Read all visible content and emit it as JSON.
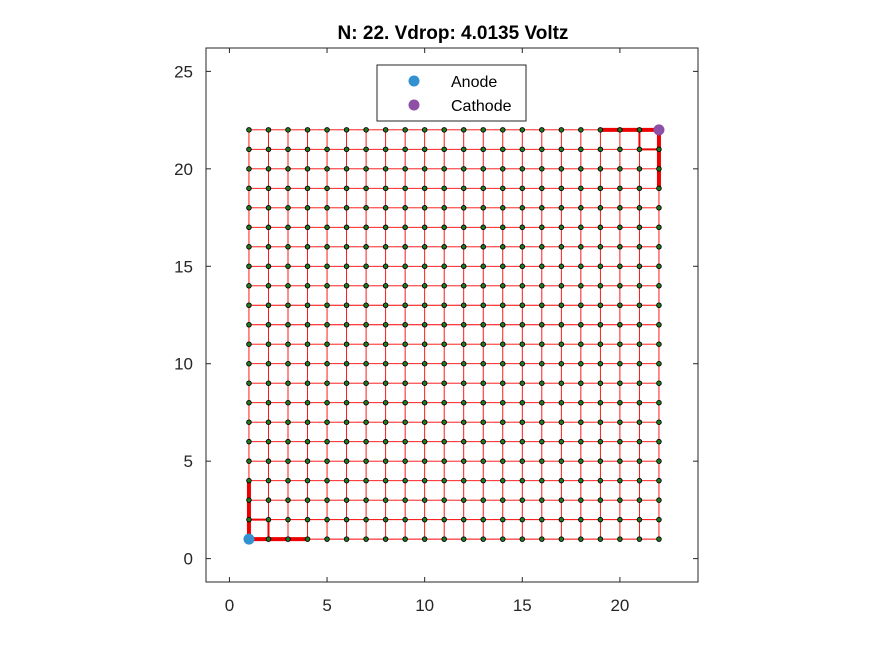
{
  "chart_data": {
    "type": "scatter",
    "title": "N: 22. Vdrop: 4.0135 Voltz",
    "xlabel": "",
    "ylabel": "",
    "xlim": [
      -1.2,
      24
    ],
    "ylim": [
      -1.2,
      26.2
    ],
    "xticks": [
      0,
      5,
      10,
      15,
      20
    ],
    "yticks": [
      0,
      5,
      10,
      15,
      20,
      25
    ],
    "grid": false,
    "legend_position": "top-center",
    "grid_size": 22,
    "legend": [
      {
        "name": "Anode",
        "color": "#3391d1"
      },
      {
        "name": "Cathode",
        "color": "#8e4fa6"
      }
    ],
    "series": [
      {
        "name": "Anode",
        "x": [
          1
        ],
        "y": [
          1
        ],
        "color": "#3391d1"
      },
      {
        "name": "Cathode",
        "x": [
          22
        ],
        "y": [
          22
        ],
        "color": "#8e4fa6"
      }
    ],
    "node_color": "#1f7a1f",
    "wire_color": "#ff0000",
    "heavy_wire_color": "#ee0000",
    "heavy_segments": [
      {
        "x": [
          1,
          4
        ],
        "y": [
          1,
          1
        ],
        "weight": 4
      },
      {
        "x": [
          1,
          1
        ],
        "y": [
          1,
          4
        ],
        "weight": 4
      },
      {
        "x": [
          1,
          2
        ],
        "y": [
          2,
          2
        ],
        "weight": 2
      },
      {
        "x": [
          2,
          2
        ],
        "y": [
          1,
          2
        ],
        "weight": 2
      },
      {
        "x": [
          2,
          3
        ],
        "y": [
          1,
          1
        ],
        "weight": 3
      },
      {
        "x": [
          1,
          1
        ],
        "y": [
          2,
          3
        ],
        "weight": 3
      },
      {
        "x": [
          19,
          22
        ],
        "y": [
          22,
          22
        ],
        "weight": 4
      },
      {
        "x": [
          22,
          22
        ],
        "y": [
          19,
          22
        ],
        "weight": 4
      },
      {
        "x": [
          21,
          22
        ],
        "y": [
          21,
          21
        ],
        "weight": 2
      },
      {
        "x": [
          21,
          21
        ],
        "y": [
          21,
          22
        ],
        "weight": 2
      },
      {
        "x": [
          20,
          21
        ],
        "y": [
          22,
          22
        ],
        "weight": 3
      },
      {
        "x": [
          22,
          22
        ],
        "y": [
          20,
          21
        ],
        "weight": 3
      }
    ]
  }
}
